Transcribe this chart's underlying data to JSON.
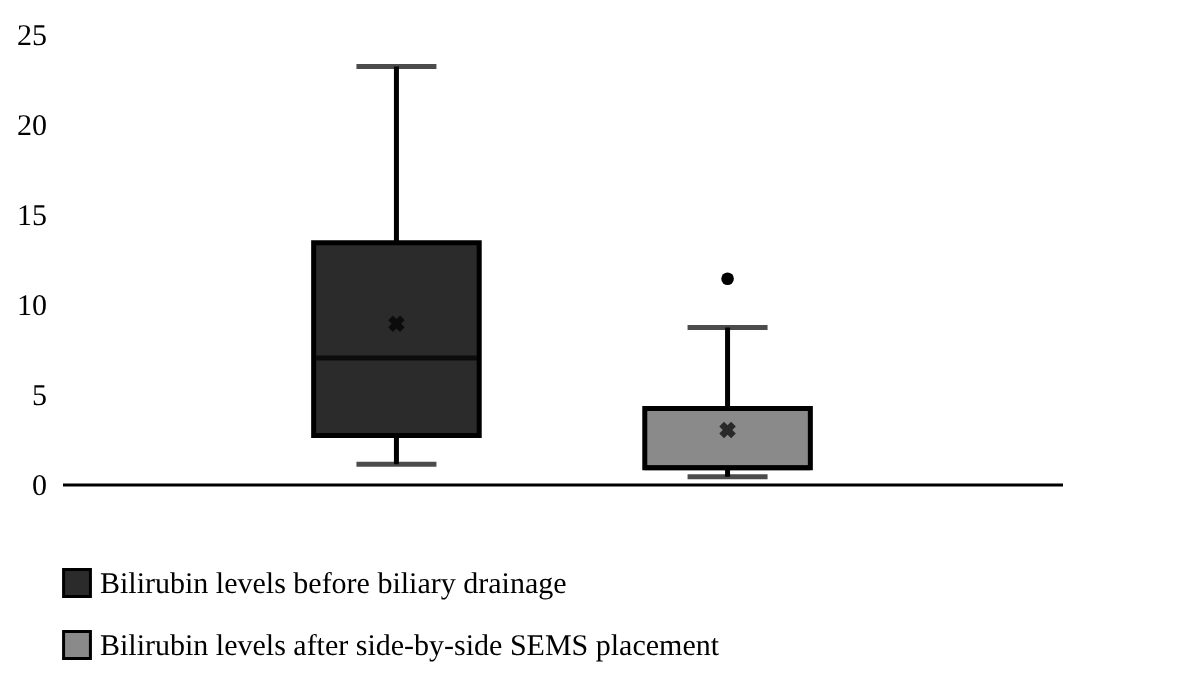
{
  "chart_data": {
    "type": "box",
    "categories": [
      null,
      null
    ],
    "series": [
      {
        "name": "Bilirubin levels before biliary drainage",
        "color": "#2b2b2b",
        "boxes": [
          {
            "low": 1.1,
            "q1": 2.7,
            "median": 7.0,
            "q3": 13.4,
            "high": 23.2,
            "mean": 8.9
          },
          null
        ]
      },
      {
        "name": "Bilirubin levels after side-by-side SEMS placement",
        "color": "#8a8a8a",
        "boxes": [
          null,
          {
            "low": 0.4,
            "q1": 0.9,
            "median": 0.9,
            "q3": 4.2,
            "high": 8.7,
            "mean": 3.0,
            "outliers": [
              11.4
            ]
          }
        ]
      }
    ],
    "ylim": [
      0,
      25
    ],
    "yticks": [
      0,
      5,
      10,
      15,
      20,
      25
    ],
    "tick_labels": "y",
    "grid": false,
    "legend": "bottom"
  }
}
